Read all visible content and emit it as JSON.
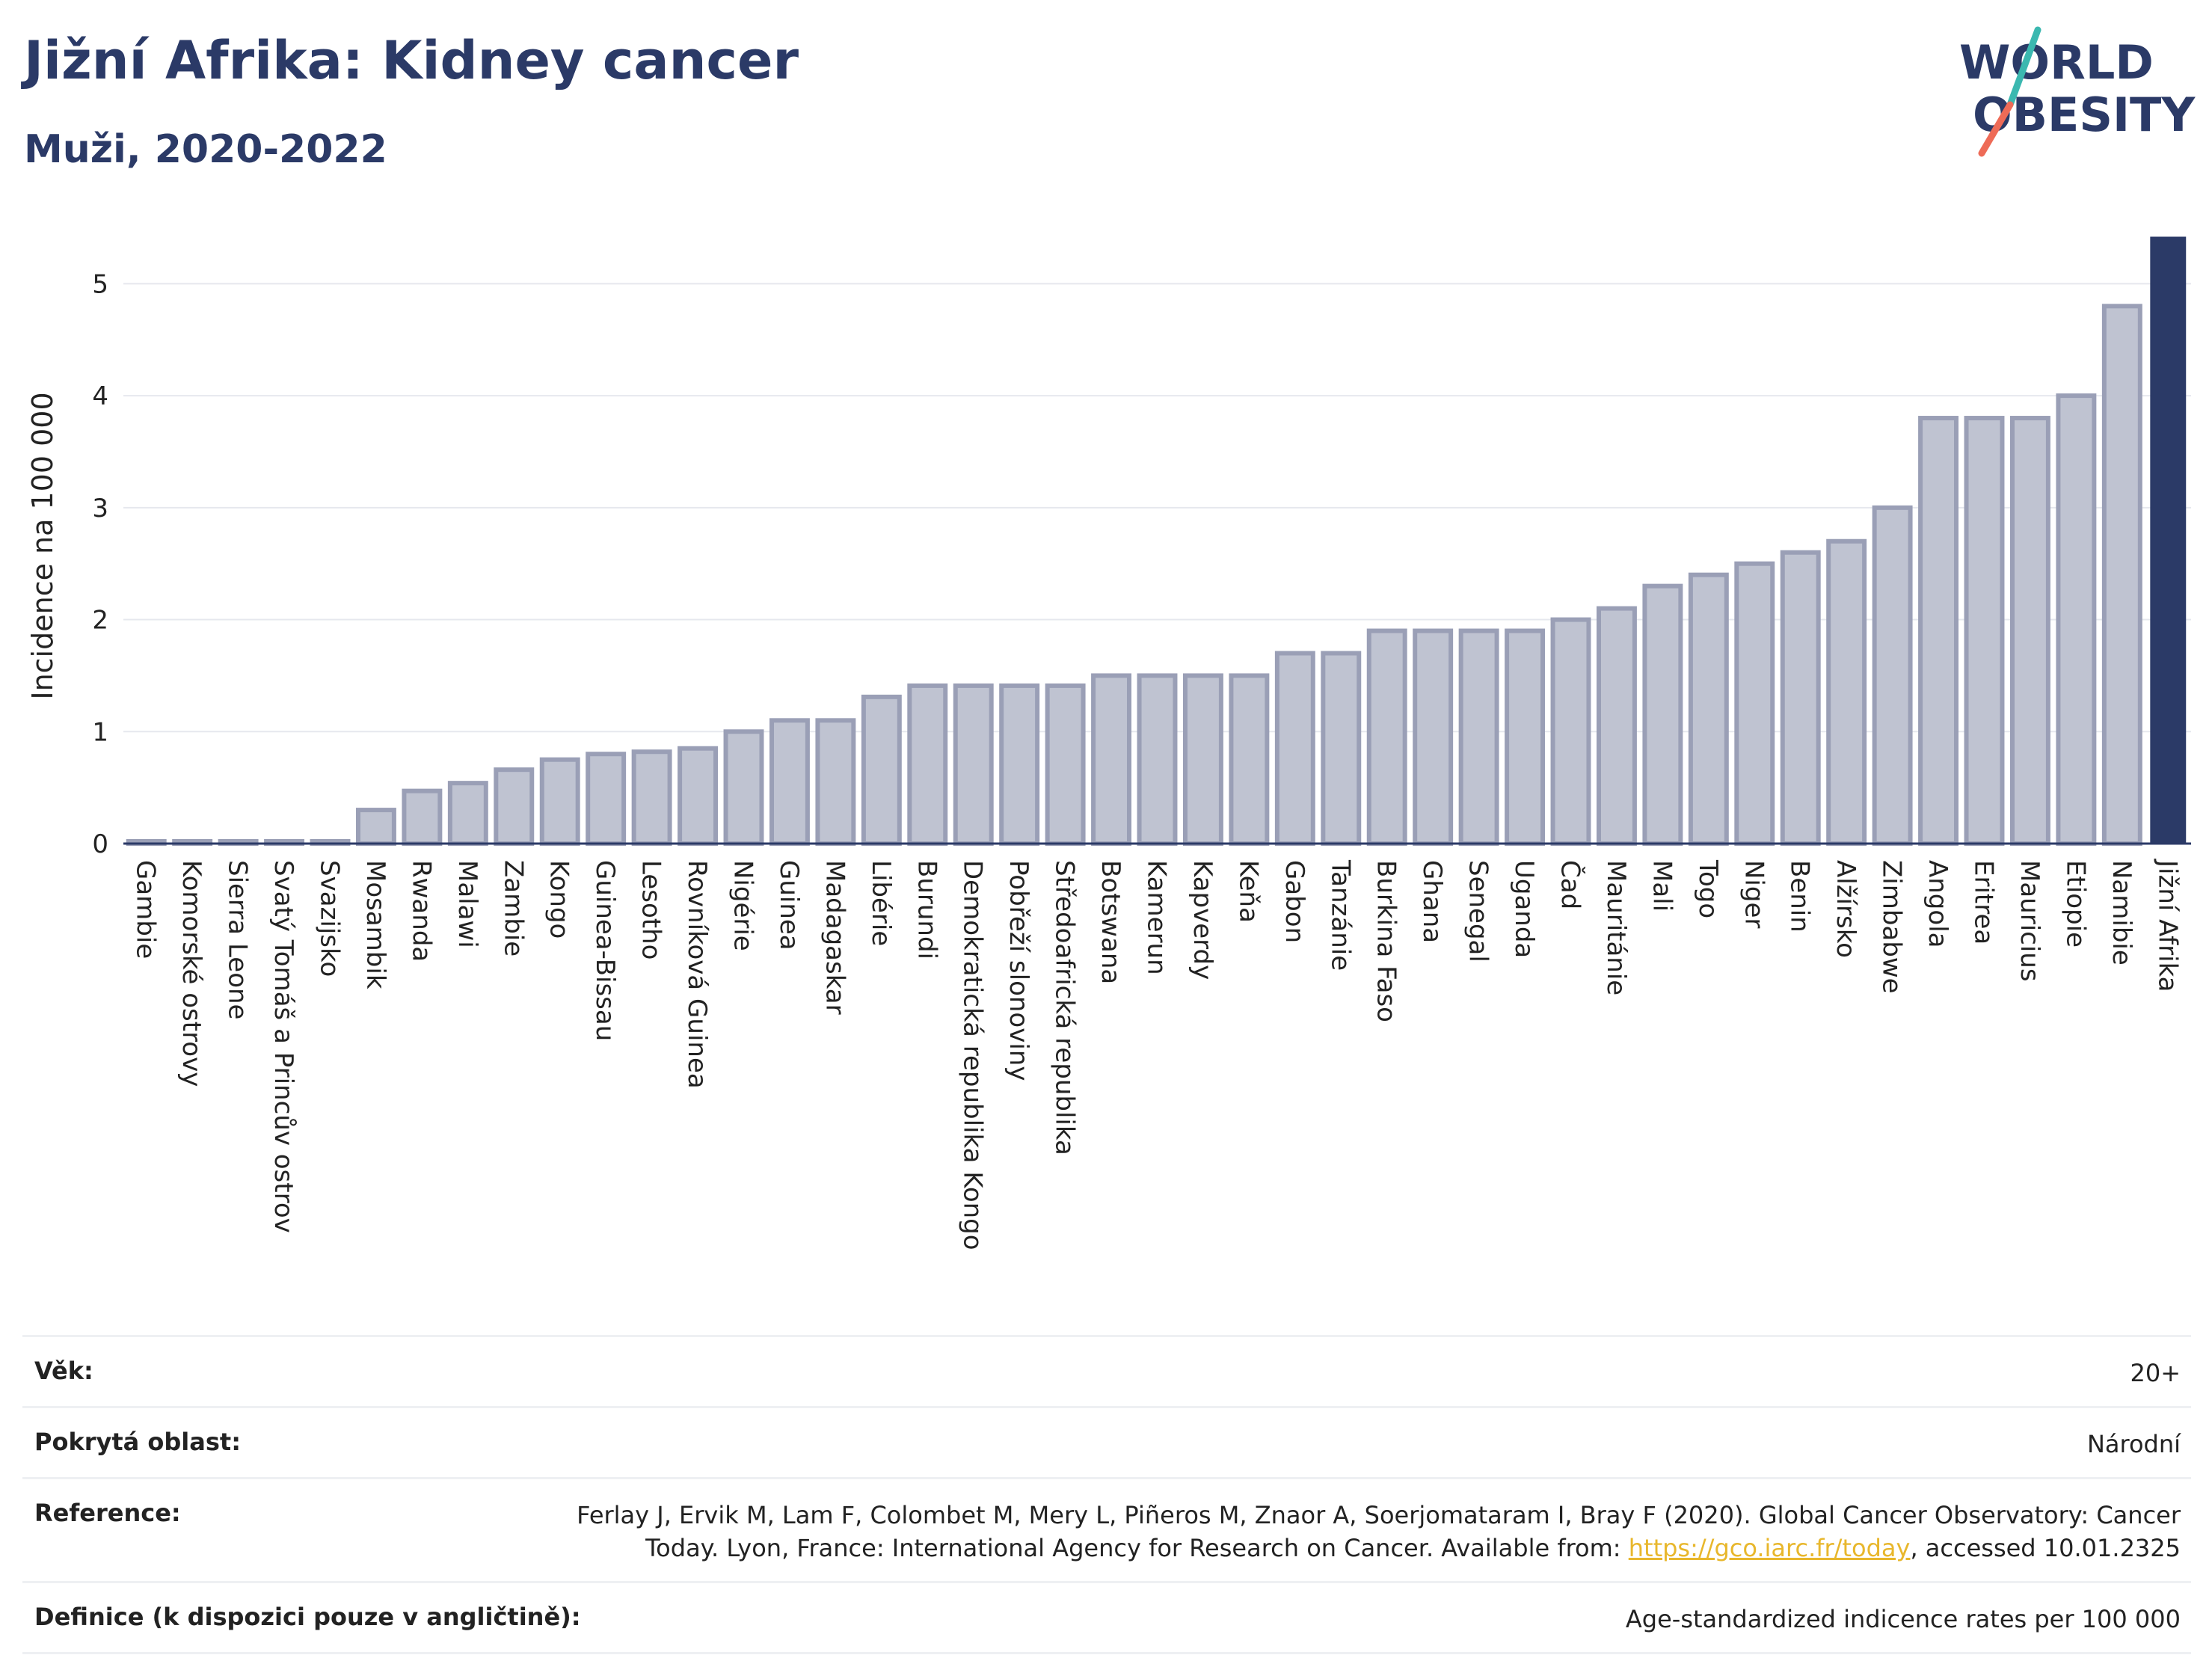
{
  "header": {
    "title": "Jižní Afrika: Kidney cancer",
    "subtitle": "Muži, 2020-2022"
  },
  "logo": {
    "line1": "WORLD",
    "line2": "OBESITY",
    "accent_teal": "#3bb8b0",
    "accent_coral": "#ee6b57"
  },
  "colors": {
    "bar_fill": "#bfc3d1",
    "bar_stroke": "#9a9fb6",
    "highlight": "#2b3a67",
    "text_dark": "#2b3a67"
  },
  "chart_data": {
    "type": "bar",
    "ylabel": "Incidence na 100 000",
    "xlabel": "",
    "ylim": [
      0,
      5.45
    ],
    "yticks": [
      0,
      1,
      2,
      3,
      4,
      5
    ],
    "grid": true,
    "highlight_category": "Jižní Afrika",
    "categories": [
      "Gambie",
      "Komorské ostrovy",
      "Sierra Leone",
      "Svatý Tomáš a Princův ostrov",
      "Svazijsko",
      "Mosambik",
      "Rwanda",
      "Malawi",
      "Zambie",
      "Kongo",
      "Guinea-Bissau",
      "Lesotho",
      "Rovníková Guinea",
      "Nigérie",
      "Guinea",
      "Madagaskar",
      "Libérie",
      "Burundi",
      "Demokratická republika Kongo",
      "Pobřeží slonoviny",
      "Středoafrická republika",
      "Botswana",
      "Kamerun",
      "Kapverdy",
      "Keňa",
      "Gabon",
      "Tanzánie",
      "Burkina Faso",
      "Ghana",
      "Senegal",
      "Uganda",
      "Čad",
      "Mauritánie",
      "Mali",
      "Togo",
      "Niger",
      "Benin",
      "Alžírsko",
      "Zimbabwe",
      "Angola",
      "Eritrea",
      "Mauricius",
      "Etiopie",
      "Namibie",
      "Jižní Afrika"
    ],
    "values": [
      0.02,
      0.02,
      0.02,
      0.02,
      0.02,
      0.3,
      0.47,
      0.54,
      0.66,
      0.75,
      0.8,
      0.82,
      0.85,
      1.0,
      1.1,
      1.1,
      1.31,
      1.41,
      1.41,
      1.41,
      1.41,
      1.5,
      1.5,
      1.5,
      1.5,
      1.7,
      1.7,
      1.9,
      1.9,
      1.9,
      1.9,
      2.0,
      2.1,
      2.3,
      2.4,
      2.5,
      2.6,
      2.7,
      3.0,
      3.8,
      3.8,
      3.8,
      4.0,
      4.8,
      5.42
    ]
  },
  "info": {
    "rows": [
      {
        "label": "Věk:",
        "value": "20+"
      },
      {
        "label": "Pokrytá oblast:",
        "value": "Národní"
      },
      {
        "label": "Reference:",
        "value_line1": "Ferlay J, Ervik M, Lam F, Colombet M, Mery L, Piñeros M, Znaor A, Soerjomataram I, Bray F (2020). Global Cancer Observatory: Cancer",
        "value_line2_pre": "Today. Lyon, France: International Agency for Research on Cancer. Available from: ",
        "link": "https://gco.iarc.fr/today",
        "value_line2_post": ", accessed 10.01.2325"
      },
      {
        "label": "Definice (k dispozici pouze v angličtině):",
        "value": "Age-standardized indicence rates per 100 000"
      }
    ]
  }
}
